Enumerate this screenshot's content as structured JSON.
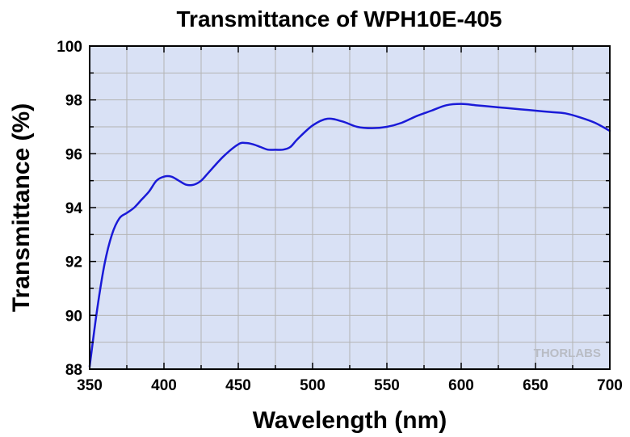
{
  "chart_data": {
    "type": "line",
    "title": "Transmittance of WPH10E-405",
    "xlabel": "Wavelength (nm)",
    "ylabel": "Transmittance (%)",
    "xlim": [
      350,
      700
    ],
    "ylim": [
      88,
      100
    ],
    "xticks": [
      350,
      400,
      450,
      500,
      550,
      600,
      650,
      700
    ],
    "yticks": [
      88,
      90,
      92,
      94,
      96,
      98,
      100
    ],
    "grid": true,
    "watermark": "THORLABS",
    "colors": {
      "plot_background": "#d9e1f5",
      "grid": "#b4b4b4",
      "line": "#1a1ad8",
      "watermark": "#b9bcc4"
    },
    "series": [
      {
        "x": [
          350,
          355,
          360,
          365,
          370,
          375,
          380,
          385,
          390,
          395,
          400,
          405,
          410,
          415,
          420,
          425,
          430,
          440,
          450,
          455,
          460,
          465,
          470,
          475,
          480,
          485,
          490,
          500,
          510,
          520,
          530,
          540,
          550,
          560,
          570,
          580,
          590,
          600,
          610,
          620,
          630,
          640,
          650,
          660,
          670,
          680,
          690,
          700
        ],
        "values": [
          88.1,
          90.2,
          91.9,
          93.0,
          93.6,
          93.8,
          94.0,
          94.3,
          94.6,
          95.0,
          95.15,
          95.15,
          95.0,
          94.85,
          94.85,
          95.0,
          95.3,
          95.9,
          96.35,
          96.4,
          96.35,
          96.25,
          96.15,
          96.15,
          96.15,
          96.25,
          96.55,
          97.05,
          97.3,
          97.2,
          97.0,
          96.95,
          97.0,
          97.15,
          97.4,
          97.6,
          97.8,
          97.85,
          97.8,
          97.75,
          97.7,
          97.65,
          97.6,
          97.55,
          97.5,
          97.35,
          97.15,
          96.85
        ]
      }
    ]
  }
}
